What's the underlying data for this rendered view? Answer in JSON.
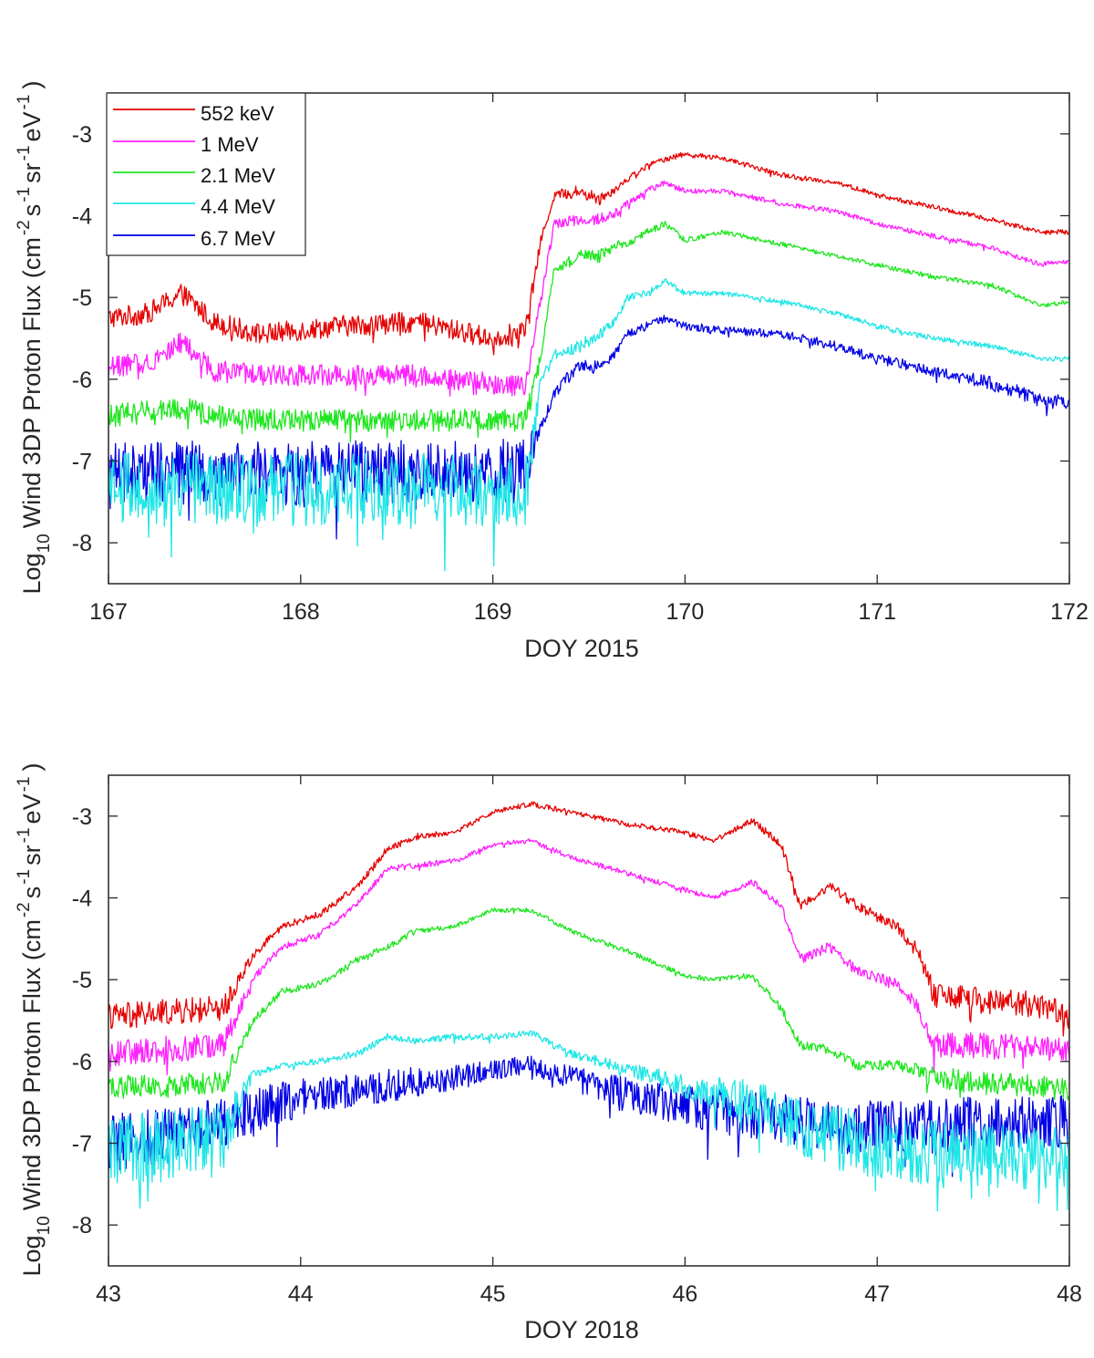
{
  "chart_data": [
    {
      "type": "line",
      "xlabel": "DOY 2015",
      "ylabel": "Log10 Wind 3DP Proton Flux (cm-2 s-1 sr-1 eV-1)",
      "ylabel_parts": {
        "log": "Log",
        "log_sub": "10",
        "main": "Wind 3DP Proton Flux (cm",
        "exp1": "-2",
        "s": "s",
        "exp2": "-1",
        "sr": "sr",
        "exp3": "-1",
        "ev": "eV",
        "exp4": "-1",
        "close": ")"
      },
      "xlim": [
        167,
        172
      ],
      "ylim": [
        -8.5,
        -2.5
      ],
      "xticks": [
        167,
        168,
        169,
        170,
        171,
        172
      ],
      "yticks": [
        -3,
        -4,
        -5,
        -6,
        -7,
        -8
      ],
      "legend": true,
      "legend_position": "top-left",
      "series": [
        {
          "name": "552 keV",
          "color": "#e60000",
          "x": [
            167.0,
            167.2,
            167.38,
            167.55,
            167.8,
            168.2,
            168.6,
            169.0,
            169.17,
            169.25,
            169.32,
            169.45,
            169.55,
            169.65,
            169.7,
            169.8,
            169.9,
            170.0,
            170.2,
            170.5,
            170.8,
            171.0,
            171.3,
            171.6,
            171.85,
            172.0
          ],
          "y": [
            -5.25,
            -5.2,
            -4.95,
            -5.3,
            -5.45,
            -5.35,
            -5.3,
            -5.5,
            -5.4,
            -4.3,
            -3.75,
            -3.7,
            -3.8,
            -3.65,
            -3.55,
            -3.4,
            -3.3,
            -3.25,
            -3.3,
            -3.5,
            -3.6,
            -3.75,
            -3.9,
            -4.05,
            -4.2,
            -4.2
          ],
          "noise": [
            0.13,
            0.13,
            0.13,
            0.13,
            0.13,
            0.13,
            0.13,
            0.13,
            0.13,
            0.06,
            0.06,
            0.08,
            0.08,
            0.05,
            0.04,
            0.04,
            0.04,
            0.03,
            0.03,
            0.03,
            0.03,
            0.03,
            0.03,
            0.03,
            0.03,
            0.03
          ]
        },
        {
          "name": "1 MeV",
          "color": "#ff1fff",
          "x": [
            167.0,
            167.2,
            167.38,
            167.55,
            167.8,
            168.2,
            168.6,
            169.0,
            169.17,
            169.25,
            169.32,
            169.45,
            169.55,
            169.65,
            169.7,
            169.8,
            169.9,
            170.0,
            170.2,
            170.5,
            170.8,
            171.0,
            171.3,
            171.6,
            171.85,
            172.0
          ],
          "y": [
            -5.85,
            -5.8,
            -5.55,
            -5.9,
            -5.95,
            -5.95,
            -5.95,
            -6.05,
            -6.1,
            -5.0,
            -4.1,
            -4.05,
            -4.05,
            -3.95,
            -3.85,
            -3.7,
            -3.6,
            -3.7,
            -3.7,
            -3.85,
            -3.95,
            -4.1,
            -4.25,
            -4.4,
            -4.6,
            -4.55
          ],
          "noise": [
            0.13,
            0.13,
            0.13,
            0.13,
            0.13,
            0.13,
            0.13,
            0.13,
            0.13,
            0.06,
            0.06,
            0.08,
            0.08,
            0.05,
            0.04,
            0.04,
            0.04,
            0.03,
            0.03,
            0.03,
            0.03,
            0.03,
            0.03,
            0.03,
            0.03,
            0.03
          ]
        },
        {
          "name": "2.1 MeV",
          "color": "#1fe61f",
          "x": [
            167.0,
            167.2,
            167.38,
            167.55,
            167.8,
            168.2,
            168.6,
            169.0,
            169.17,
            169.25,
            169.32,
            169.45,
            169.55,
            169.65,
            169.7,
            169.8,
            169.9,
            170.0,
            170.2,
            170.5,
            170.8,
            171.0,
            171.3,
            171.6,
            171.85,
            172.0
          ],
          "y": [
            -6.45,
            -6.4,
            -6.35,
            -6.45,
            -6.5,
            -6.5,
            -6.5,
            -6.5,
            -6.5,
            -5.7,
            -4.65,
            -4.5,
            -4.5,
            -4.35,
            -4.35,
            -4.2,
            -4.1,
            -4.3,
            -4.2,
            -4.35,
            -4.5,
            -4.6,
            -4.75,
            -4.85,
            -5.1,
            -5.05
          ],
          "noise": [
            0.14,
            0.14,
            0.14,
            0.14,
            0.14,
            0.14,
            0.14,
            0.14,
            0.14,
            0.06,
            0.06,
            0.08,
            0.08,
            0.05,
            0.04,
            0.04,
            0.04,
            0.03,
            0.03,
            0.03,
            0.03,
            0.03,
            0.03,
            0.03,
            0.03,
            0.03
          ]
        },
        {
          "name": "4.4 MeV",
          "color": "#1fe6e6",
          "x": [
            167.0,
            167.2,
            167.38,
            167.55,
            167.8,
            168.2,
            168.6,
            169.0,
            169.17,
            169.25,
            169.32,
            169.45,
            169.55,
            169.65,
            169.7,
            169.8,
            169.9,
            170.0,
            170.2,
            170.5,
            170.8,
            171.0,
            171.3,
            171.6,
            171.85,
            172.0
          ],
          "y": [
            -7.35,
            -7.35,
            -7.35,
            -7.35,
            -7.35,
            -7.35,
            -7.35,
            -7.35,
            -7.35,
            -6.0,
            -5.7,
            -5.6,
            -5.45,
            -5.25,
            -5.0,
            -4.95,
            -4.8,
            -4.95,
            -4.95,
            -5.05,
            -5.2,
            -5.35,
            -5.5,
            -5.6,
            -5.75,
            -5.75
          ],
          "noise": [
            0.45,
            0.45,
            0.45,
            0.45,
            0.45,
            0.45,
            0.45,
            0.45,
            0.45,
            0.06,
            0.06,
            0.08,
            0.08,
            0.05,
            0.04,
            0.04,
            0.04,
            0.03,
            0.03,
            0.03,
            0.03,
            0.03,
            0.03,
            0.03,
            0.03,
            0.03
          ]
        },
        {
          "name": "6.7 MeV",
          "color": "#0000e6",
          "x": [
            167.0,
            167.2,
            167.38,
            167.55,
            167.8,
            168.2,
            168.6,
            169.0,
            169.17,
            169.25,
            169.32,
            169.45,
            169.55,
            169.65,
            169.7,
            169.8,
            169.9,
            170.0,
            170.2,
            170.5,
            170.8,
            171.0,
            171.3,
            171.6,
            171.85,
            172.0
          ],
          "y": [
            -7.15,
            -7.15,
            -7.15,
            -7.15,
            -7.15,
            -7.15,
            -7.15,
            -7.15,
            -7.1,
            -6.6,
            -6.15,
            -5.85,
            -5.85,
            -5.65,
            -5.45,
            -5.35,
            -5.25,
            -5.35,
            -5.4,
            -5.45,
            -5.6,
            -5.75,
            -5.9,
            -6.05,
            -6.25,
            -6.3
          ],
          "noise": [
            0.4,
            0.4,
            0.4,
            0.4,
            0.4,
            0.4,
            0.4,
            0.4,
            0.4,
            0.08,
            0.08,
            0.08,
            0.08,
            0.06,
            0.05,
            0.05,
            0.05,
            0.05,
            0.05,
            0.05,
            0.06,
            0.06,
            0.07,
            0.08,
            0.09,
            0.09
          ]
        }
      ]
    },
    {
      "type": "line",
      "xlabel": "DOY 2018",
      "ylabel": "Log10 Wind 3DP Proton Flux (cm-2 s-1 sr-1 eV-1)",
      "ylabel_parts": {
        "log": "Log",
        "log_sub": "10",
        "main": "Wind 3DP Proton Flux (cm",
        "exp1": "-2",
        "s": "s",
        "exp2": "-1",
        "sr": "sr",
        "exp3": "-1",
        "ev": "eV",
        "exp4": "-1",
        "close": ")"
      },
      "xlim": [
        43,
        48
      ],
      "ylim": [
        -8.5,
        -2.5
      ],
      "xticks": [
        43,
        44,
        45,
        46,
        47,
        48
      ],
      "yticks": [
        -3,
        -4,
        -5,
        -6,
        -7,
        -8
      ],
      "legend": false,
      "series": [
        {
          "name": "552 keV",
          "color": "#e60000",
          "x": [
            43.0,
            43.3,
            43.6,
            43.75,
            43.9,
            44.1,
            44.3,
            44.45,
            44.6,
            44.8,
            45.0,
            45.2,
            45.4,
            45.7,
            46.0,
            46.15,
            46.35,
            46.5,
            46.6,
            46.75,
            46.9,
            47.1,
            47.2,
            47.3,
            47.5,
            47.8,
            48.0
          ],
          "y": [
            -5.45,
            -5.4,
            -5.35,
            -4.7,
            -4.35,
            -4.2,
            -3.85,
            -3.4,
            -3.25,
            -3.2,
            -2.95,
            -2.85,
            -2.95,
            -3.1,
            -3.2,
            -3.3,
            -3.05,
            -3.35,
            -4.1,
            -3.85,
            -4.1,
            -4.35,
            -4.6,
            -5.2,
            -5.25,
            -5.3,
            -5.4
          ],
          "noise": [
            0.16,
            0.16,
            0.16,
            0.05,
            0.04,
            0.04,
            0.04,
            0.04,
            0.04,
            0.03,
            0.03,
            0.03,
            0.03,
            0.03,
            0.03,
            0.03,
            0.04,
            0.05,
            0.06,
            0.06,
            0.06,
            0.07,
            0.08,
            0.16,
            0.16,
            0.16,
            0.16
          ]
        },
        {
          "name": "1 MeV",
          "color": "#ff1fff",
          "x": [
            43.0,
            43.3,
            43.6,
            43.75,
            43.9,
            44.1,
            44.3,
            44.45,
            44.6,
            44.8,
            45.0,
            45.2,
            45.4,
            45.7,
            46.0,
            46.15,
            46.35,
            46.5,
            46.6,
            46.75,
            46.9,
            47.1,
            47.2,
            47.3,
            47.5,
            47.8,
            48.0
          ],
          "y": [
            -5.9,
            -5.85,
            -5.8,
            -5.0,
            -4.6,
            -4.45,
            -4.05,
            -3.65,
            -3.6,
            -3.55,
            -3.35,
            -3.3,
            -3.5,
            -3.7,
            -3.9,
            -4.0,
            -3.8,
            -4.1,
            -4.75,
            -4.6,
            -4.9,
            -5.05,
            -5.3,
            -5.8,
            -5.8,
            -5.85,
            -5.85
          ],
          "noise": [
            0.16,
            0.16,
            0.16,
            0.05,
            0.04,
            0.04,
            0.04,
            0.04,
            0.04,
            0.03,
            0.03,
            0.03,
            0.03,
            0.03,
            0.03,
            0.03,
            0.04,
            0.05,
            0.06,
            0.06,
            0.06,
            0.07,
            0.08,
            0.16,
            0.16,
            0.16,
            0.16
          ]
        },
        {
          "name": "2.1 MeV",
          "color": "#1fe61f",
          "x": [
            43.0,
            43.3,
            43.6,
            43.75,
            43.9,
            44.1,
            44.3,
            44.45,
            44.6,
            44.8,
            45.0,
            45.2,
            45.4,
            45.7,
            46.0,
            46.15,
            46.35,
            46.5,
            46.6,
            46.75,
            46.9,
            47.1,
            47.2,
            47.3,
            47.5,
            47.8,
            48.0
          ],
          "y": [
            -6.3,
            -6.3,
            -6.25,
            -5.5,
            -5.15,
            -5.05,
            -4.75,
            -4.6,
            -4.4,
            -4.35,
            -4.15,
            -4.15,
            -4.4,
            -4.65,
            -4.95,
            -5.0,
            -4.95,
            -5.35,
            -5.8,
            -5.85,
            -6.05,
            -6.05,
            -6.1,
            -6.2,
            -6.25,
            -6.3,
            -6.35
          ],
          "noise": [
            0.14,
            0.14,
            0.14,
            0.05,
            0.04,
            0.04,
            0.04,
            0.04,
            0.04,
            0.03,
            0.03,
            0.03,
            0.03,
            0.03,
            0.03,
            0.03,
            0.04,
            0.05,
            0.06,
            0.06,
            0.06,
            0.07,
            0.08,
            0.14,
            0.14,
            0.14,
            0.14
          ]
        },
        {
          "name": "4.4 MeV",
          "color": "#1fe6e6",
          "x": [
            43.0,
            43.3,
            43.6,
            43.75,
            43.9,
            44.1,
            44.3,
            44.45,
            44.6,
            44.8,
            45.0,
            45.2,
            45.4,
            45.7,
            46.0,
            46.15,
            46.35,
            46.5,
            46.6,
            46.75,
            46.9,
            47.1,
            47.2,
            47.3,
            47.5,
            47.8,
            48.0
          ],
          "y": [
            -7.1,
            -7.05,
            -6.95,
            -6.15,
            -6.05,
            -6.0,
            -5.9,
            -5.7,
            -5.75,
            -5.7,
            -5.7,
            -5.65,
            -5.9,
            -6.1,
            -6.3,
            -6.4,
            -6.5,
            -6.6,
            -6.8,
            -6.9,
            -7.0,
            -7.05,
            -7.1,
            -7.1,
            -7.15,
            -7.2,
            -7.2
          ],
          "noise": [
            0.45,
            0.45,
            0.45,
            0.05,
            0.04,
            0.04,
            0.04,
            0.04,
            0.04,
            0.04,
            0.04,
            0.04,
            0.05,
            0.08,
            0.15,
            0.2,
            0.3,
            0.35,
            0.4,
            0.4,
            0.4,
            0.4,
            0.4,
            0.4,
            0.4,
            0.4,
            0.4
          ]
        },
        {
          "name": "6.7 MeV",
          "color": "#0000e6",
          "x": [
            43.0,
            43.3,
            43.6,
            43.75,
            43.9,
            44.1,
            44.3,
            44.45,
            44.6,
            44.8,
            45.0,
            45.2,
            45.4,
            45.7,
            46.0,
            46.15,
            46.35,
            46.5,
            46.6,
            46.75,
            46.9,
            47.1,
            47.2,
            47.3,
            47.5,
            47.8,
            48.0
          ],
          "y": [
            -7.0,
            -6.9,
            -6.75,
            -6.6,
            -6.5,
            -6.4,
            -6.35,
            -6.3,
            -6.25,
            -6.2,
            -6.1,
            -6.05,
            -6.2,
            -6.4,
            -6.55,
            -6.6,
            -6.65,
            -6.7,
            -6.75,
            -6.8,
            -6.8,
            -6.8,
            -6.8,
            -6.8,
            -6.75,
            -6.75,
            -6.75
          ],
          "noise": [
            0.35,
            0.35,
            0.3,
            0.28,
            0.25,
            0.22,
            0.2,
            0.2,
            0.18,
            0.15,
            0.12,
            0.12,
            0.15,
            0.2,
            0.25,
            0.28,
            0.3,
            0.32,
            0.33,
            0.33,
            0.33,
            0.33,
            0.33,
            0.33,
            0.33,
            0.33,
            0.33
          ]
        }
      ]
    }
  ]
}
